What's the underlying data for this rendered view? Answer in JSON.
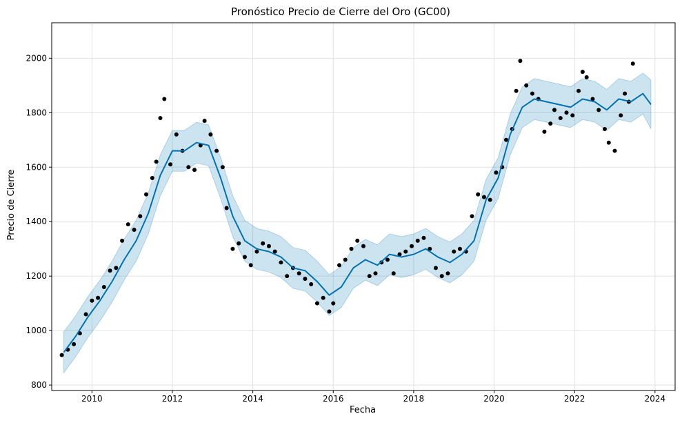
{
  "chart_data": {
    "type": "line",
    "title": "Pronóstico Precio de Cierre del Oro (GC00)",
    "xlabel": "Fecha",
    "ylabel": "Precio de Cierre",
    "xlim": [
      2009.0,
      2024.5
    ],
    "ylim": [
      780,
      2130
    ],
    "x_ticks": [
      2010,
      2012,
      2014,
      2016,
      2018,
      2020,
      2022,
      2024
    ],
    "x_tick_labels": [
      "2010",
      "2012",
      "2014",
      "2016",
      "2018",
      "2020",
      "2022",
      "2024"
    ],
    "y_ticks": [
      800,
      1000,
      1200,
      1400,
      1600,
      1800,
      2000
    ],
    "y_tick_labels": [
      "800",
      "1000",
      "1200",
      "1400",
      "1600",
      "1800",
      "2000"
    ],
    "grid": true,
    "colors": {
      "forecast_line": "#0072B2",
      "uncertainty_band": "#0072B2",
      "observations": "#000000",
      "grid": "#e2e2e2"
    },
    "series": [
      {
        "kind": "forecast",
        "x": [
          2009.3,
          2009.6,
          2009.9,
          2010.2,
          2010.5,
          2010.8,
          2011.1,
          2011.4,
          2011.7,
          2012.0,
          2012.3,
          2012.6,
          2012.9,
          2013.2,
          2013.5,
          2013.8,
          2014.1,
          2014.4,
          2014.7,
          2015.0,
          2015.3,
          2015.6,
          2015.9,
          2016.2,
          2016.5,
          2016.8,
          2017.1,
          2017.4,
          2017.7,
          2018.0,
          2018.3,
          2018.6,
          2018.9,
          2019.2,
          2019.5,
          2019.8,
          2020.1,
          2020.4,
          2020.7,
          2021.0,
          2021.3,
          2021.6,
          2021.9,
          2022.2,
          2022.5,
          2022.8,
          2023.1,
          2023.4,
          2023.7,
          2023.9
        ],
        "y": [
          920,
          980,
          1050,
          1110,
          1180,
          1260,
          1330,
          1430,
          1570,
          1660,
          1660,
          1690,
          1680,
          1560,
          1420,
          1330,
          1300,
          1290,
          1270,
          1230,
          1220,
          1180,
          1130,
          1160,
          1230,
          1260,
          1240,
          1280,
          1270,
          1280,
          1300,
          1270,
          1250,
          1280,
          1330,
          1480,
          1560,
          1720,
          1820,
          1850,
          1840,
          1830,
          1820,
          1850,
          1840,
          1810,
          1850,
          1840,
          1870,
          1830
        ]
      },
      {
        "kind": "uncertainty",
        "x": [
          2009.3,
          2009.6,
          2009.9,
          2010.2,
          2010.5,
          2010.8,
          2011.1,
          2011.4,
          2011.7,
          2012.0,
          2012.3,
          2012.6,
          2012.9,
          2013.2,
          2013.5,
          2013.8,
          2014.1,
          2014.4,
          2014.7,
          2015.0,
          2015.3,
          2015.6,
          2015.9,
          2016.2,
          2016.5,
          2016.8,
          2017.1,
          2017.4,
          2017.7,
          2018.0,
          2018.3,
          2018.6,
          2018.9,
          2019.2,
          2019.5,
          2019.8,
          2020.1,
          2020.4,
          2020.7,
          2021.0,
          2021.3,
          2021.6,
          2021.9,
          2022.2,
          2022.5,
          2022.8,
          2023.1,
          2023.4,
          2023.7,
          2023.9
        ],
        "lower": [
          845,
          905,
          975,
          1035,
          1105,
          1185,
          1255,
          1355,
          1495,
          1585,
          1585,
          1615,
          1605,
          1485,
          1345,
          1255,
          1225,
          1215,
          1195,
          1155,
          1145,
          1105,
          1055,
          1085,
          1155,
          1185,
          1165,
          1205,
          1195,
          1205,
          1225,
          1195,
          1175,
          1205,
          1255,
          1405,
          1485,
          1645,
          1745,
          1775,
          1765,
          1755,
          1745,
          1775,
          1765,
          1735,
          1775,
          1765,
          1795,
          1740
        ],
        "upper": [
          995,
          1055,
          1125,
          1185,
          1255,
          1335,
          1405,
          1505,
          1645,
          1735,
          1735,
          1765,
          1755,
          1635,
          1495,
          1405,
          1375,
          1365,
          1345,
          1305,
          1295,
          1255,
          1205,
          1235,
          1305,
          1335,
          1315,
          1355,
          1345,
          1355,
          1375,
          1345,
          1325,
          1355,
          1405,
          1555,
          1635,
          1795,
          1895,
          1925,
          1915,
          1905,
          1895,
          1925,
          1915,
          1885,
          1925,
          1915,
          1945,
          1920
        ]
      },
      {
        "kind": "observed",
        "x": [
          2009.25,
          2009.4,
          2009.55,
          2009.7,
          2009.85,
          2010.0,
          2010.15,
          2010.3,
          2010.45,
          2010.6,
          2010.75,
          2010.9,
          2011.05,
          2011.2,
          2011.35,
          2011.5,
          2011.6,
          2011.7,
          2011.8,
          2011.95,
          2012.1,
          2012.25,
          2012.4,
          2012.55,
          2012.7,
          2012.8,
          2012.95,
          2013.1,
          2013.25,
          2013.35,
          2013.5,
          2013.65,
          2013.8,
          2013.95,
          2014.1,
          2014.25,
          2014.4,
          2014.55,
          2014.7,
          2014.85,
          2015.0,
          2015.15,
          2015.3,
          2015.45,
          2015.6,
          2015.75,
          2015.9,
          2016.0,
          2016.15,
          2016.3,
          2016.45,
          2016.6,
          2016.75,
          2016.9,
          2017.05,
          2017.2,
          2017.35,
          2017.5,
          2017.65,
          2017.8,
          2017.95,
          2018.1,
          2018.25,
          2018.4,
          2018.55,
          2018.7,
          2018.85,
          2019.0,
          2019.15,
          2019.3,
          2019.45,
          2019.6,
          2019.75,
          2019.9,
          2020.05,
          2020.2,
          2020.3,
          2020.45,
          2020.55,
          2020.65,
          2020.8,
          2020.95,
          2021.1,
          2021.25,
          2021.4,
          2021.5,
          2021.65,
          2021.8,
          2021.95,
          2022.1,
          2022.2,
          2022.3,
          2022.45,
          2022.6,
          2022.75,
          2022.85,
          2023.0,
          2023.15,
          2023.25,
          2023.35,
          2023.45
        ],
        "y": [
          910,
          930,
          950,
          990,
          1060,
          1110,
          1120,
          1160,
          1220,
          1230,
          1330,
          1390,
          1370,
          1420,
          1500,
          1560,
          1620,
          1780,
          1850,
          1610,
          1720,
          1660,
          1600,
          1590,
          1680,
          1770,
          1720,
          1660,
          1600,
          1450,
          1300,
          1320,
          1270,
          1240,
          1290,
          1320,
          1310,
          1290,
          1250,
          1200,
          1230,
          1210,
          1190,
          1170,
          1100,
          1120,
          1070,
          1100,
          1240,
          1260,
          1300,
          1330,
          1310,
          1200,
          1210,
          1250,
          1260,
          1210,
          1280,
          1290,
          1310,
          1330,
          1340,
          1300,
          1230,
          1200,
          1210,
          1290,
          1300,
          1290,
          1420,
          1500,
          1490,
          1480,
          1580,
          1600,
          1700,
          1740,
          1880,
          1990,
          1900,
          1870,
          1850,
          1730,
          1760,
          1810,
          1780,
          1800,
          1790,
          1880,
          1950,
          1930,
          1850,
          1810,
          1740,
          1690,
          1660,
          1790,
          1870,
          1840,
          1980
        ]
      }
    ]
  }
}
